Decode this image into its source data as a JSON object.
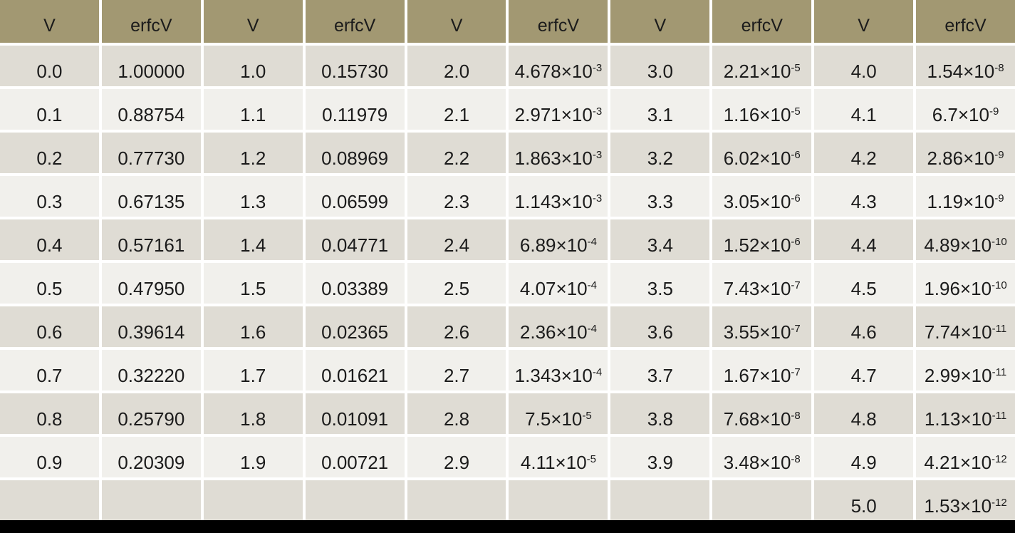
{
  "table": {
    "columns": [
      "V",
      "erfcV",
      "V",
      "erfcV",
      "V",
      "erfcV",
      "V",
      "erfcV",
      "V",
      "erfcV"
    ],
    "rows": [
      [
        "0.0",
        "1.00000",
        "1.0",
        "0.15730",
        "2.0",
        "4.678×10^-3",
        "3.0",
        "2.21×10^-5",
        "4.0",
        "1.54×10^-8"
      ],
      [
        "0.1",
        "0.88754",
        "1.1",
        "0.11979",
        "2.1",
        "2.971×10^-3",
        "3.1",
        "1.16×10^-5",
        "4.1",
        "6.7×10^-9"
      ],
      [
        "0.2",
        "0.77730",
        "1.2",
        "0.08969",
        "2.2",
        "1.863×10^-3",
        "3.2",
        "6.02×10^-6",
        "4.2",
        "2.86×10^-9"
      ],
      [
        "0.3",
        "0.67135",
        "1.3",
        "0.06599",
        "2.3",
        "1.143×10^-3",
        "3.3",
        "3.05×10^-6",
        "4.3",
        "1.19×10^-9"
      ],
      [
        "0.4",
        "0.57161",
        "1.4",
        "0.04771",
        "2.4",
        "6.89×10^-4",
        "3.4",
        "1.52×10^-6",
        "4.4",
        "4.89×10^-10"
      ],
      [
        "0.5",
        "0.47950",
        "1.5",
        "0.03389",
        "2.5",
        "4.07×10^-4",
        "3.5",
        "7.43×10^-7",
        "4.5",
        "1.96×10^-10"
      ],
      [
        "0.6",
        "0.39614",
        "1.6",
        "0.02365",
        "2.6",
        "2.36×10^-4",
        "3.6",
        "3.55×10^-7",
        "4.6",
        "7.74×10^-11"
      ],
      [
        "0.7",
        "0.32220",
        "1.7",
        "0.01621",
        "2.7",
        "1.343×10^-4",
        "3.7",
        "1.67×10^-7",
        "4.7",
        "2.99×10^-11"
      ],
      [
        "0.8",
        "0.25790",
        "1.8",
        "0.01091",
        "2.8",
        "7.5×10^-5",
        "3.8",
        "7.68×10^-8",
        "4.8",
        "1.13×10^-11"
      ],
      [
        "0.9",
        "0.20309",
        "1.9",
        "0.00721",
        "2.9",
        "4.11×10^-5",
        "3.9",
        "3.48×10^-8",
        "4.9",
        "4.21×10^-12"
      ],
      [
        "",
        "",
        "",
        "",
        "",
        "",
        "",
        "",
        "5.0",
        "1.53×10^-12"
      ]
    ]
  },
  "colors": {
    "header_bg": "#a29872",
    "row_dark_bg": "#dfdcd4",
    "row_light_bg": "#f1f0ec",
    "gridline": "#ffffff",
    "text": "#1b1b1b",
    "bottom_bar": "#000000"
  },
  "chart_data": {
    "type": "table",
    "title": "",
    "columns": [
      "V",
      "erfcV"
    ],
    "v": [
      0.0,
      0.1,
      0.2,
      0.3,
      0.4,
      0.5,
      0.6,
      0.7,
      0.8,
      0.9,
      1.0,
      1.1,
      1.2,
      1.3,
      1.4,
      1.5,
      1.6,
      1.7,
      1.8,
      1.9,
      2.0,
      2.1,
      2.2,
      2.3,
      2.4,
      2.5,
      2.6,
      2.7,
      2.8,
      2.9,
      3.0,
      3.1,
      3.2,
      3.3,
      3.4,
      3.5,
      3.6,
      3.7,
      3.8,
      3.9,
      4.0,
      4.1,
      4.2,
      4.3,
      4.4,
      4.5,
      4.6,
      4.7,
      4.8,
      4.9,
      5.0
    ],
    "erfcV": [
      1.0,
      0.88754,
      0.7773,
      0.67135,
      0.57161,
      0.4795,
      0.39614,
      0.3222,
      0.2579,
      0.20309,
      0.1573,
      0.11979,
      0.08969,
      0.06599,
      0.04771,
      0.03389,
      0.02365,
      0.01621,
      0.01091,
      0.00721,
      0.004678,
      0.002971,
      0.001863,
      0.001143,
      0.000689,
      0.000407,
      0.000236,
      0.0001343,
      7.5e-05,
      4.11e-05,
      2.21e-05,
      1.16e-05,
      6.02e-06,
      3.05e-06,
      1.52e-06,
      7.43e-07,
      3.55e-07,
      1.67e-07,
      7.68e-08,
      3.48e-08,
      1.54e-08,
      6.7e-09,
      2.86e-09,
      1.19e-09,
      4.89e-10,
      1.96e-10,
      7.74e-11,
      2.99e-11,
      1.13e-11,
      4.21e-12,
      1.53e-12
    ]
  }
}
